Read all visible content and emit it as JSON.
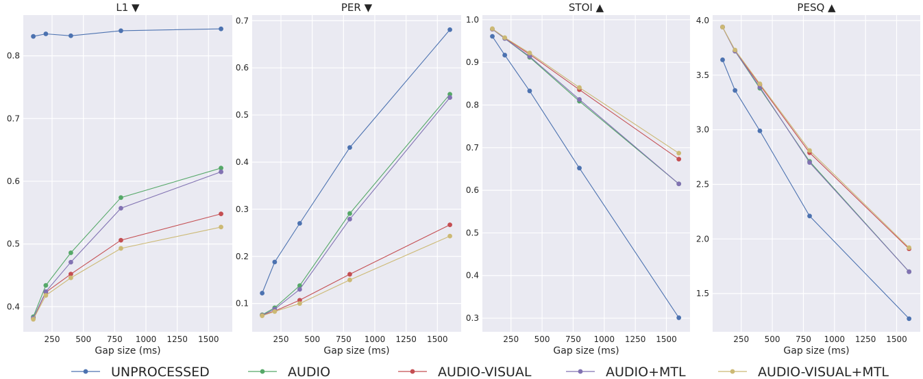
{
  "chart_data": [
    {
      "type": "line",
      "title": "L1 ▼",
      "xlabel": "Gap size (ms)",
      "ylabel": "",
      "xlim": [
        20,
        1690
      ],
      "ylim": [
        0.36,
        0.865
      ],
      "xticks": [
        250,
        500,
        750,
        1000,
        1250,
        1500
      ],
      "yticks": [
        0.4,
        0.5,
        0.6,
        0.7,
        0.8
      ],
      "ytick_labels": [
        "0.4",
        "0.5",
        "0.6",
        "0.7",
        "0.8"
      ],
      "x": [
        100,
        200,
        400,
        800,
        1600
      ],
      "series": [
        {
          "name": "UNPROCESSED",
          "color": "#4c72b0",
          "values": [
            0.831,
            0.835,
            0.832,
            0.84,
            0.843
          ]
        },
        {
          "name": "AUDIO",
          "color": "#55a868",
          "values": [
            0.384,
            0.434,
            0.486,
            0.574,
            0.621
          ]
        },
        {
          "name": "AUDIO-VISUAL",
          "color": "#c44e52",
          "values": [
            0.381,
            0.423,
            0.452,
            0.506,
            0.548
          ]
        },
        {
          "name": "AUDIO+MTL",
          "color": "#8172b2",
          "values": [
            0.382,
            0.424,
            0.471,
            0.557,
            0.615
          ]
        },
        {
          "name": "AUDIO-VISUAL+MTL",
          "color": "#ccb974",
          "values": [
            0.38,
            0.418,
            0.446,
            0.493,
            0.527
          ]
        }
      ]
    },
    {
      "type": "line",
      "title": "PER ▼",
      "xlabel": "Gap size (ms)",
      "ylabel": "",
      "xlim": [
        20,
        1690
      ],
      "ylim": [
        0.04,
        0.712
      ],
      "xticks": [
        250,
        500,
        750,
        1000,
        1250,
        1500
      ],
      "yticks": [
        0.1,
        0.2,
        0.3,
        0.4,
        0.5,
        0.6,
        0.7
      ],
      "ytick_labels": [
        "0.1",
        "0.2",
        "0.3",
        "0.4",
        "0.5",
        "0.6",
        "0.7"
      ],
      "x": [
        100,
        200,
        400,
        800,
        1600
      ],
      "series": [
        {
          "name": "UNPROCESSED",
          "color": "#4c72b0",
          "values": [
            0.122,
            0.188,
            0.27,
            0.431,
            0.681
          ]
        },
        {
          "name": "AUDIO",
          "color": "#55a868",
          "values": [
            0.076,
            0.091,
            0.138,
            0.291,
            0.544
          ]
        },
        {
          "name": "AUDIO-VISUAL",
          "color": "#c44e52",
          "values": [
            0.075,
            0.084,
            0.107,
            0.162,
            0.267
          ]
        },
        {
          "name": "AUDIO+MTL",
          "color": "#8172b2",
          "values": [
            0.075,
            0.088,
            0.13,
            0.279,
            0.537
          ]
        },
        {
          "name": "AUDIO-VISUAL+MTL",
          "color": "#ccb974",
          "values": [
            0.074,
            0.083,
            0.1,
            0.15,
            0.243
          ]
        }
      ]
    },
    {
      "type": "line",
      "title": "STOI ▲",
      "xlabel": "Gap size (ms)",
      "ylabel": "",
      "xlim": [
        20,
        1690
      ],
      "ylim": [
        0.268,
        1.011
      ],
      "xticks": [
        250,
        500,
        750,
        1000,
        1250,
        1500
      ],
      "yticks": [
        0.3,
        0.4,
        0.5,
        0.6,
        0.7,
        0.8,
        0.9,
        1.0
      ],
      "ytick_labels": [
        "0.3",
        "0.4",
        "0.5",
        "0.6",
        "0.7",
        "0.8",
        "0.9",
        "1.0"
      ],
      "x": [
        100,
        200,
        400,
        800,
        1600
      ],
      "series": [
        {
          "name": "UNPROCESSED",
          "color": "#4c72b0",
          "values": [
            0.961,
            0.917,
            0.833,
            0.652,
            0.301
          ]
        },
        {
          "name": "AUDIO",
          "color": "#55a868",
          "values": [
            0.978,
            0.956,
            0.912,
            0.809,
            0.615
          ]
        },
        {
          "name": "AUDIO-VISUAL",
          "color": "#c44e52",
          "values": [
            0.978,
            0.957,
            0.919,
            0.836,
            0.673
          ]
        },
        {
          "name": "AUDIO+MTL",
          "color": "#8172b2",
          "values": [
            0.978,
            0.956,
            0.914,
            0.813,
            0.615
          ]
        },
        {
          "name": "AUDIO-VISUAL+MTL",
          "color": "#ccb974",
          "values": [
            0.979,
            0.958,
            0.922,
            0.841,
            0.687
          ]
        }
      ]
    },
    {
      "type": "line",
      "title": "PESQ ▲",
      "xlabel": "Gap size (ms)",
      "ylabel": "",
      "xlim": [
        20,
        1690
      ],
      "ylim": [
        1.15,
        4.05
      ],
      "xticks": [
        250,
        500,
        750,
        1000,
        1250,
        1500
      ],
      "yticks": [
        1.5,
        2.0,
        2.5,
        3.0,
        3.5,
        4.0
      ],
      "ytick_labels": [
        "1.5",
        "2.0",
        "2.5",
        "3.0",
        "3.5",
        "4.0"
      ],
      "x": [
        100,
        200,
        400,
        800,
        1600
      ],
      "series": [
        {
          "name": "UNPROCESSED",
          "color": "#4c72b0",
          "values": [
            3.64,
            3.36,
            2.99,
            2.21,
            1.27
          ]
        },
        {
          "name": "AUDIO",
          "color": "#55a868",
          "values": [
            3.94,
            3.72,
            3.38,
            2.71,
            1.7
          ]
        },
        {
          "name": "AUDIO-VISUAL",
          "color": "#c44e52",
          "values": [
            3.94,
            3.72,
            3.41,
            2.79,
            1.91
          ]
        },
        {
          "name": "AUDIO+MTL",
          "color": "#8172b2",
          "values": [
            3.94,
            3.72,
            3.39,
            2.7,
            1.7
          ]
        },
        {
          "name": "AUDIO-VISUAL+MTL",
          "color": "#ccb974",
          "values": [
            3.94,
            3.73,
            3.42,
            2.81,
            1.92
          ]
        }
      ]
    }
  ],
  "legend": {
    "placement": "bottom",
    "entries": [
      {
        "label": "UNPROCESSED",
        "color": "#4c72b0"
      },
      {
        "label": "AUDIO",
        "color": "#55a868"
      },
      {
        "label": "AUDIO-VISUAL",
        "color": "#c44e52"
      },
      {
        "label": "AUDIO+MTL",
        "color": "#8172b2"
      },
      {
        "label": "AUDIO-VISUAL+MTL",
        "color": "#ccb974"
      }
    ]
  },
  "style": {
    "plot_background": "#eaeaf2",
    "grid_color": "#ffffff",
    "grid": true
  }
}
